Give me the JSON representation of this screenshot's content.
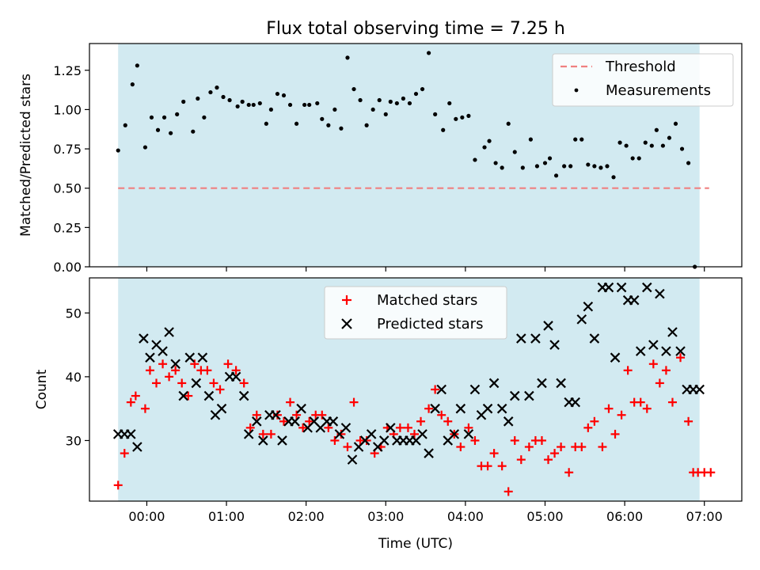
{
  "figure": {
    "title": "Flux total observing time = 7.25 h"
  },
  "colors": {
    "shade": "#add8e6",
    "threshold": "#f08080",
    "measurements": "#000000",
    "matched": "#ff0000",
    "predicted": "#000000"
  },
  "chart_data": [
    {
      "type": "scatter",
      "title": "Flux total observing time = 7.25 h",
      "ylabel": "Matched/Predicted stars",
      "xlabel": "",
      "x_unit": "hours since 00:00 UTC",
      "xlim": [
        -0.72,
        7.47
      ],
      "ylim": [
        0.0,
        1.42
      ],
      "yticks": [
        0.0,
        0.25,
        0.5,
        0.75,
        1.0,
        1.25
      ],
      "ytick_labels": [
        "0.00",
        "0.25",
        "0.50",
        "0.75",
        "1.00",
        "1.25"
      ],
      "xticks": [
        0,
        1,
        2,
        3,
        4,
        5,
        6,
        7
      ],
      "xtick_labels": [
        "00:00",
        "01:00",
        "02:00",
        "03:00",
        "04:00",
        "05:00",
        "06:00",
        "07:00"
      ],
      "show_xtick_labels": false,
      "grid": false,
      "shaded_span": [
        -0.36,
        6.94
      ],
      "legend_position": "top-right",
      "threshold": {
        "name": "Threshold",
        "y": 0.5,
        "x": [
          -0.36,
          7.06
        ]
      },
      "series": [
        {
          "name": "Measurements",
          "x": [
            -0.36,
            -0.27,
            -0.18,
            -0.12,
            -0.02,
            0.06,
            0.14,
            0.22,
            0.3,
            0.38,
            0.46,
            0.58,
            0.64,
            0.72,
            0.8,
            0.88,
            0.96,
            1.04,
            1.14,
            1.2,
            1.28,
            1.34,
            1.42,
            1.5,
            1.56,
            1.64,
            1.72,
            1.8,
            1.88,
            1.98,
            2.04,
            2.14,
            2.2,
            2.28,
            2.36,
            2.44,
            2.52,
            2.6,
            2.68,
            2.76,
            2.84,
            2.92,
            3.0,
            3.06,
            3.14,
            3.22,
            3.3,
            3.38,
            3.46,
            3.54,
            3.62,
            3.72,
            3.8,
            3.88,
            3.96,
            4.04,
            4.12,
            4.24,
            4.3,
            4.38,
            4.46,
            4.54,
            4.62,
            4.72,
            4.82,
            4.9,
            5.0,
            5.06,
            5.14,
            5.24,
            5.32,
            5.38,
            5.46,
            5.54,
            5.62,
            5.7,
            5.78,
            5.86,
            5.94,
            6.02,
            6.1,
            6.18,
            6.26,
            6.34,
            6.4,
            6.48,
            6.56,
            6.64,
            6.72,
            6.8,
            6.88
          ],
          "y": [
            0.74,
            0.9,
            1.16,
            1.28,
            0.76,
            0.95,
            0.87,
            0.95,
            0.85,
            0.97,
            1.05,
            0.86,
            1.07,
            0.95,
            1.11,
            1.14,
            1.08,
            1.06,
            1.02,
            1.05,
            1.03,
            1.03,
            1.04,
            0.91,
            1.0,
            1.1,
            1.09,
            1.03,
            0.91,
            1.03,
            1.03,
            1.04,
            0.94,
            0.9,
            1.0,
            0.88,
            1.33,
            1.13,
            1.06,
            0.9,
            1.0,
            1.06,
            0.97,
            1.05,
            1.04,
            1.07,
            1.04,
            1.1,
            1.13,
            1.36,
            0.97,
            0.87,
            1.04,
            0.94,
            0.95,
            0.96,
            0.68,
            0.76,
            0.8,
            0.66,
            0.63,
            0.91,
            0.73,
            0.63,
            0.81,
            0.64,
            0.66,
            0.69,
            0.58,
            0.64,
            0.64,
            0.81,
            0.81,
            0.65,
            0.64,
            0.63,
            0.64,
            0.57,
            0.79,
            0.77,
            0.69,
            0.69,
            0.79,
            0.77,
            0.87,
            0.77,
            0.82,
            0.91,
            0.75,
            0.66,
            0.0
          ]
        }
      ]
    },
    {
      "type": "scatter",
      "title": "",
      "xlabel": "Time (UTC)",
      "ylabel": "Count",
      "x_unit": "hours since 00:00 UTC",
      "xlim": [
        -0.72,
        7.47
      ],
      "ylim": [
        20.5,
        55.5
      ],
      "yticks": [
        30,
        40,
        50
      ],
      "ytick_labels": [
        "30",
        "40",
        "50"
      ],
      "xticks": [
        0,
        1,
        2,
        3,
        4,
        5,
        6,
        7
      ],
      "xtick_labels": [
        "00:00",
        "01:00",
        "02:00",
        "03:00",
        "04:00",
        "05:00",
        "06:00",
        "07:00"
      ],
      "show_xtick_labels": true,
      "grid": false,
      "shaded_span": [
        -0.36,
        6.94
      ],
      "legend_position": "top-center",
      "series": [
        {
          "name": "Matched stars",
          "marker": "plus",
          "x": [
            -0.36,
            -0.28,
            -0.2,
            -0.14,
            -0.02,
            0.04,
            0.12,
            0.2,
            0.28,
            0.36,
            0.44,
            0.52,
            0.6,
            0.68,
            0.76,
            0.84,
            0.92,
            1.02,
            1.12,
            1.22,
            1.3,
            1.38,
            1.46,
            1.56,
            1.64,
            1.72,
            1.8,
            1.88,
            1.96,
            2.04,
            2.12,
            2.2,
            2.28,
            2.36,
            2.44,
            2.52,
            2.6,
            2.68,
            2.76,
            2.86,
            2.94,
            3.02,
            3.1,
            3.18,
            3.28,
            3.36,
            3.44,
            3.54,
            3.62,
            3.7,
            3.78,
            3.86,
            3.94,
            4.04,
            4.12,
            4.2,
            4.28,
            4.36,
            4.46,
            4.54,
            4.62,
            4.7,
            4.8,
            4.88,
            4.96,
            5.04,
            5.12,
            5.2,
            5.3,
            5.38,
            5.46,
            5.54,
            5.62,
            5.72,
            5.8,
            5.88,
            5.96,
            6.04,
            6.12,
            6.2,
            6.28,
            6.36,
            6.44,
            6.52,
            6.6,
            6.7,
            6.8,
            6.86,
            6.92,
            7.0,
            7.08
          ],
          "y": [
            23,
            28,
            36,
            37,
            35,
            41,
            39,
            42,
            40,
            41,
            39,
            37,
            42,
            41,
            41,
            39,
            38,
            42,
            41,
            39,
            32,
            34,
            31,
            31,
            34,
            33,
            36,
            34,
            32,
            33,
            34,
            34,
            32,
            30,
            31,
            29,
            36,
            30,
            30,
            28,
            29,
            32,
            31,
            32,
            32,
            31,
            33,
            35,
            38,
            34,
            33,
            31,
            29,
            32,
            30,
            26,
            26,
            28,
            26,
            22,
            30,
            27,
            29,
            30,
            30,
            27,
            28,
            29,
            25,
            29,
            29,
            32,
            33,
            29,
            35,
            31,
            34,
            41,
            36,
            36,
            35,
            42,
            39,
            41,
            36,
            43,
            33,
            25,
            25,
            25,
            25
          ]
        },
        {
          "name": "Predicted stars",
          "marker": "x",
          "x": [
            -0.36,
            -0.28,
            -0.2,
            -0.12,
            -0.04,
            0.04,
            0.12,
            0.2,
            0.28,
            0.36,
            0.46,
            0.54,
            0.62,
            0.7,
            0.78,
            0.86,
            0.94,
            1.04,
            1.12,
            1.22,
            1.28,
            1.38,
            1.46,
            1.54,
            1.62,
            1.7,
            1.78,
            1.86,
            1.94,
            2.02,
            2.1,
            2.18,
            2.26,
            2.34,
            2.42,
            2.5,
            2.58,
            2.66,
            2.74,
            2.82,
            2.9,
            2.98,
            3.06,
            3.14,
            3.22,
            3.3,
            3.38,
            3.46,
            3.54,
            3.62,
            3.7,
            3.78,
            3.86,
            3.94,
            4.04,
            4.12,
            4.2,
            4.28,
            4.36,
            4.46,
            4.54,
            4.62,
            4.7,
            4.8,
            4.88,
            4.96,
            5.04,
            5.12,
            5.2,
            5.3,
            5.38,
            5.46,
            5.54,
            5.62,
            5.72,
            5.8,
            5.88,
            5.96,
            6.04,
            6.12,
            6.2,
            6.28,
            6.36,
            6.44,
            6.52,
            6.6,
            6.7,
            6.78,
            6.86,
            6.94
          ],
          "y": [
            31,
            31,
            31,
            29,
            46,
            43,
            45,
            44,
            47,
            42,
            37,
            43,
            39,
            43,
            37,
            34,
            35,
            40,
            40,
            37,
            31,
            33,
            30,
            34,
            34,
            30,
            33,
            33,
            35,
            32,
            33,
            32,
            33,
            33,
            31,
            32,
            27,
            29,
            30,
            31,
            29,
            30,
            32,
            30,
            30,
            30,
            30,
            31,
            28,
            35,
            38,
            30,
            31,
            35,
            31,
            38,
            34,
            35,
            39,
            35,
            33,
            37,
            46,
            37,
            46,
            39,
            48,
            45,
            39,
            36,
            36,
            49,
            51,
            46,
            54,
            54,
            43,
            54,
            52,
            52,
            44,
            54,
            45,
            53,
            44,
            47,
            44,
            38,
            38,
            38
          ],
          "note_index_cut": 88
        }
      ]
    }
  ]
}
